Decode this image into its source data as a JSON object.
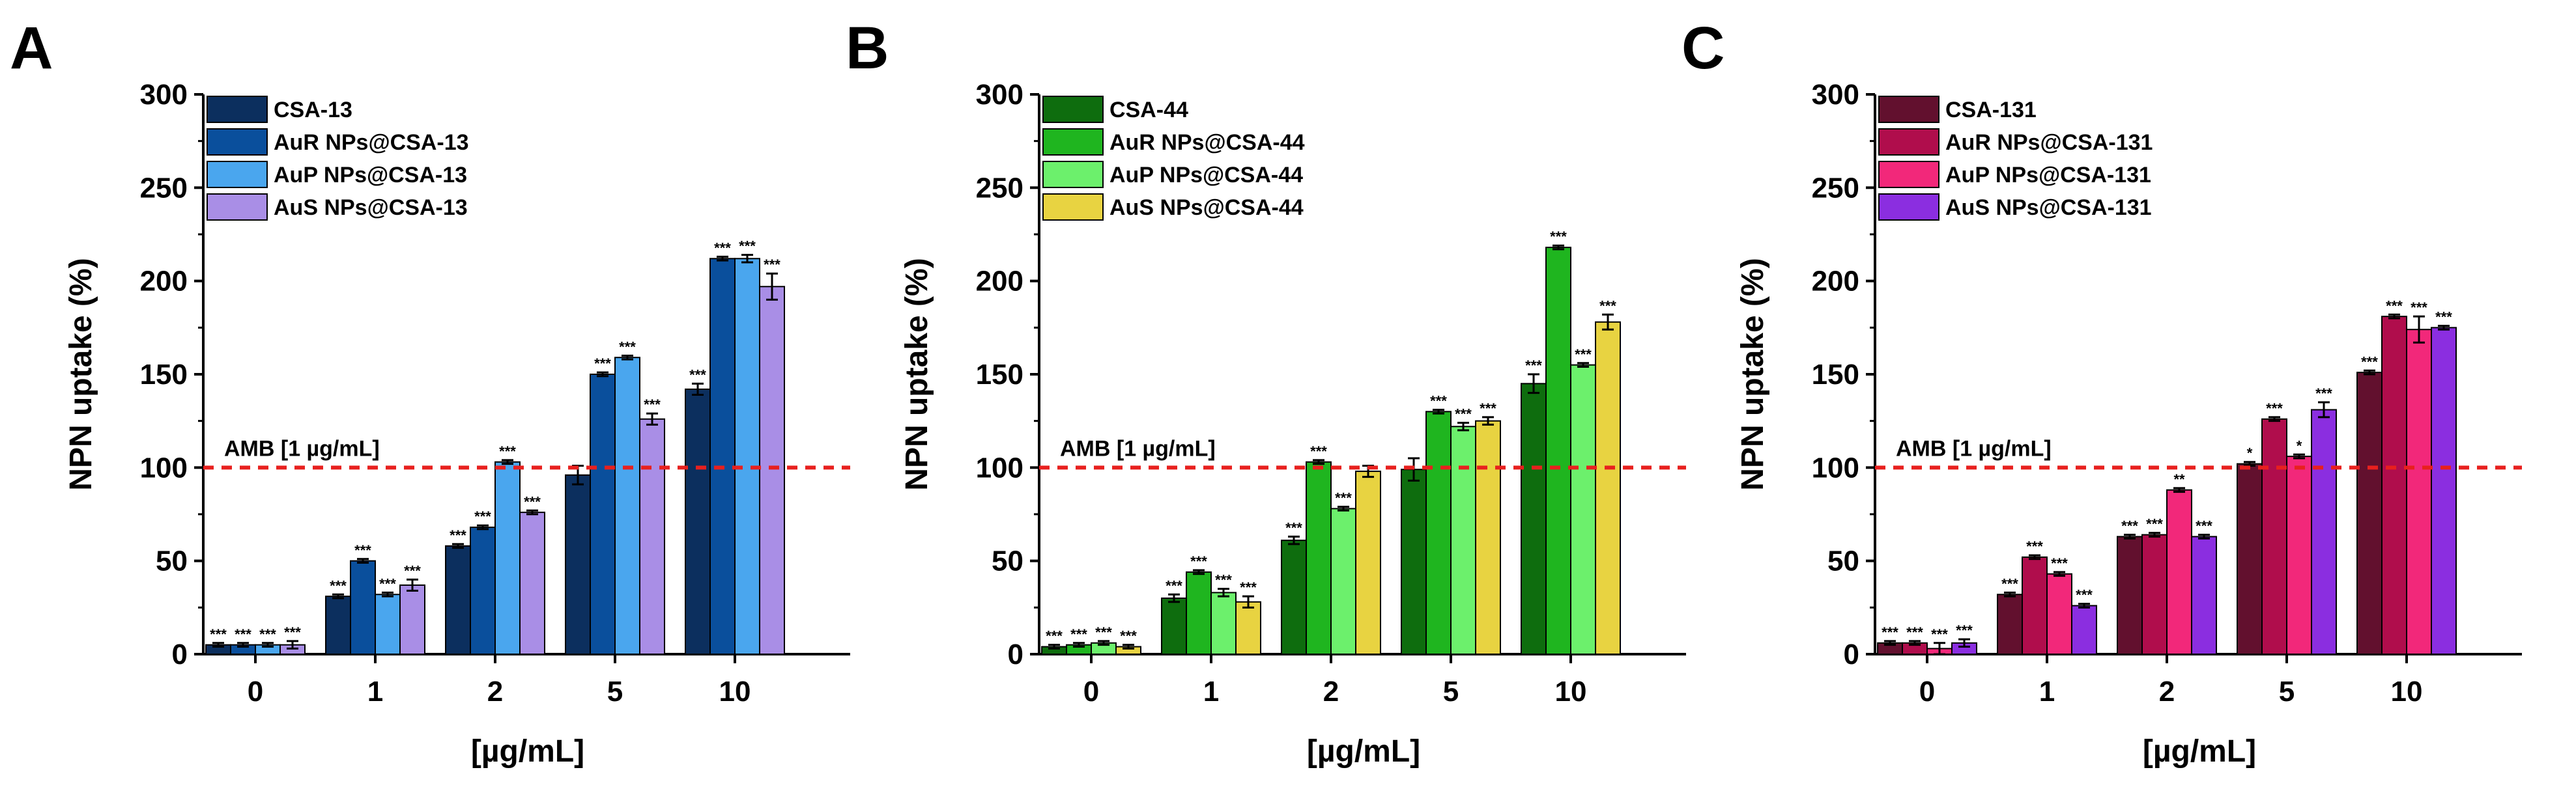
{
  "chart_data": [
    {
      "type": "bar",
      "panel_label": "A",
      "categories": [
        "0",
        "1",
        "2",
        "5",
        "10"
      ],
      "xlabel": "[µg/mL]",
      "ylabel": "NPN uptake (%)",
      "ylim": [
        0,
        300
      ],
      "yticks": [
        "0",
        "50",
        "100",
        "150",
        "200",
        "250",
        "300"
      ],
      "grid": false,
      "legend_position": "top-left",
      "reference_line": {
        "value": 100,
        "label": "AMB [1 µg/mL]",
        "color": "#e8201e",
        "style": "dashed"
      },
      "series": [
        {
          "name": "CSA-13",
          "color": "#0c2f5e",
          "values": [
            5,
            31,
            58,
            96,
            142
          ],
          "errors": [
            1,
            1,
            1,
            5,
            3
          ],
          "significance": [
            "***",
            "***",
            "***",
            "",
            "***"
          ]
        },
        {
          "name": "AuR NPs@CSA-13",
          "color": "#0a4f9c",
          "values": [
            5,
            50,
            68,
            150,
            212
          ],
          "errors": [
            1,
            1,
            1,
            1,
            1
          ],
          "significance": [
            "***",
            "***",
            "***",
            "***",
            "***"
          ]
        },
        {
          "name": "AuP NPs@CSA-13",
          "color": "#4aa6ee",
          "values": [
            5,
            32,
            103,
            159,
            212
          ],
          "errors": [
            1,
            1,
            1,
            1,
            2
          ],
          "significance": [
            "***",
            "***",
            "***",
            "***",
            "***"
          ]
        },
        {
          "name": "AuS NPs@CSA-13",
          "color": "#a98ee6",
          "values": [
            5,
            37,
            76,
            126,
            197
          ],
          "errors": [
            2,
            3,
            1,
            3,
            7
          ],
          "significance": [
            "***",
            "***",
            "***",
            "***",
            "***"
          ]
        }
      ]
    },
    {
      "type": "bar",
      "panel_label": "B",
      "categories": [
        "0",
        "1",
        "2",
        "5",
        "10"
      ],
      "xlabel": "[µg/mL]",
      "ylabel": "NPN uptake (%)",
      "ylim": [
        0,
        300
      ],
      "yticks": [
        "0",
        "50",
        "100",
        "150",
        "200",
        "250",
        "300"
      ],
      "grid": false,
      "legend_position": "top-left",
      "reference_line": {
        "value": 100,
        "label": "AMB [1 µg/mL]",
        "color": "#e8201e",
        "style": "dashed"
      },
      "series": [
        {
          "name": "CSA-44",
          "color": "#0e6d0e",
          "values": [
            4,
            30,
            61,
            99,
            145
          ],
          "errors": [
            1,
            2,
            2,
            6,
            5
          ],
          "significance": [
            "***",
            "***",
            "***",
            "",
            "***"
          ]
        },
        {
          "name": "AuR NPs@CSA-44",
          "color": "#1fb51f",
          "values": [
            5,
            44,
            103,
            130,
            218
          ],
          "errors": [
            1,
            1,
            1,
            1,
            1
          ],
          "significance": [
            "***",
            "***",
            "***",
            "***",
            "***"
          ]
        },
        {
          "name": "AuP NPs@CSA-44",
          "color": "#6cf06c",
          "values": [
            6,
            33,
            78,
            122,
            155
          ],
          "errors": [
            1,
            2,
            1,
            2,
            1
          ],
          "significance": [
            "***",
            "***",
            "***",
            "***",
            "***"
          ]
        },
        {
          "name": "AuS NPs@CSA-44",
          "color": "#e8d341",
          "values": [
            4,
            28,
            98,
            125,
            178
          ],
          "errors": [
            1,
            3,
            3,
            2,
            4
          ],
          "significance": [
            "***",
            "***",
            "",
            "***",
            "***"
          ]
        }
      ]
    },
    {
      "type": "bar",
      "panel_label": "C",
      "categories": [
        "0",
        "1",
        "2",
        "5",
        "10"
      ],
      "xlabel": "[µg/mL]",
      "ylabel": "NPN uptake (%)",
      "ylim": [
        0,
        300
      ],
      "yticks": [
        "0",
        "50",
        "100",
        "150",
        "200",
        "250",
        "300"
      ],
      "grid": false,
      "legend_position": "top-left",
      "reference_line": {
        "value": 100,
        "label": "AMB [1 µg/mL]",
        "color": "#e8201e",
        "style": "dashed"
      },
      "series": [
        {
          "name": "CSA-131",
          "color": "#62102e",
          "values": [
            6,
            32,
            63,
            102,
            151
          ],
          "errors": [
            1,
            1,
            1,
            1,
            1
          ],
          "significance": [
            "***",
            "***",
            "***",
            "*",
            "***"
          ]
        },
        {
          "name": "AuR NPs@CSA-131",
          "color": "#b00d4c",
          "values": [
            6,
            52,
            64,
            126,
            181
          ],
          "errors": [
            1,
            1,
            1,
            1,
            1
          ],
          "significance": [
            "***",
            "***",
            "***",
            "***",
            "***"
          ]
        },
        {
          "name": "AuP NPs@CSA-131",
          "color": "#f2287a",
          "values": [
            3,
            43,
            88,
            106,
            174
          ],
          "errors": [
            3,
            1,
            1,
            1,
            7
          ],
          "significance": [
            "***",
            "***",
            "**",
            "*",
            "***"
          ]
        },
        {
          "name": "AuS NPs@CSA-131",
          "color": "#8b2ee0",
          "values": [
            6,
            26,
            63,
            131,
            175
          ],
          "errors": [
            2,
            1,
            1,
            4,
            1
          ],
          "significance": [
            "***",
            "***",
            "***",
            "***",
            "***"
          ]
        }
      ]
    }
  ]
}
